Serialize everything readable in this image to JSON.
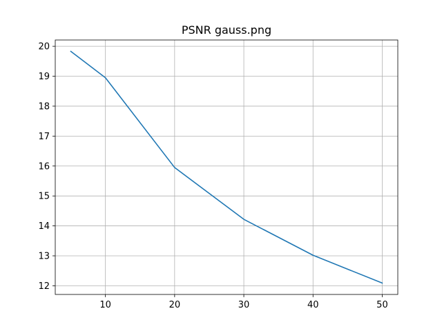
{
  "chart_data": {
    "type": "line",
    "title": "PSNR gauss.png",
    "xlabel": "",
    "ylabel": "",
    "xlim": [
      2.75,
      52.25
    ],
    "ylim": [
      11.71,
      20.21
    ],
    "x_ticks": [
      10,
      20,
      30,
      40,
      50
    ],
    "y_ticks": [
      12,
      13,
      14,
      15,
      16,
      17,
      18,
      19,
      20
    ],
    "grid": true,
    "legend": "none",
    "series": [
      {
        "color": "#1f77b4",
        "x": [
          5,
          10,
          20,
          30,
          40,
          50
        ],
        "y": [
          19.83,
          18.95,
          15.95,
          14.22,
          13.02,
          12.09
        ]
      }
    ]
  }
}
